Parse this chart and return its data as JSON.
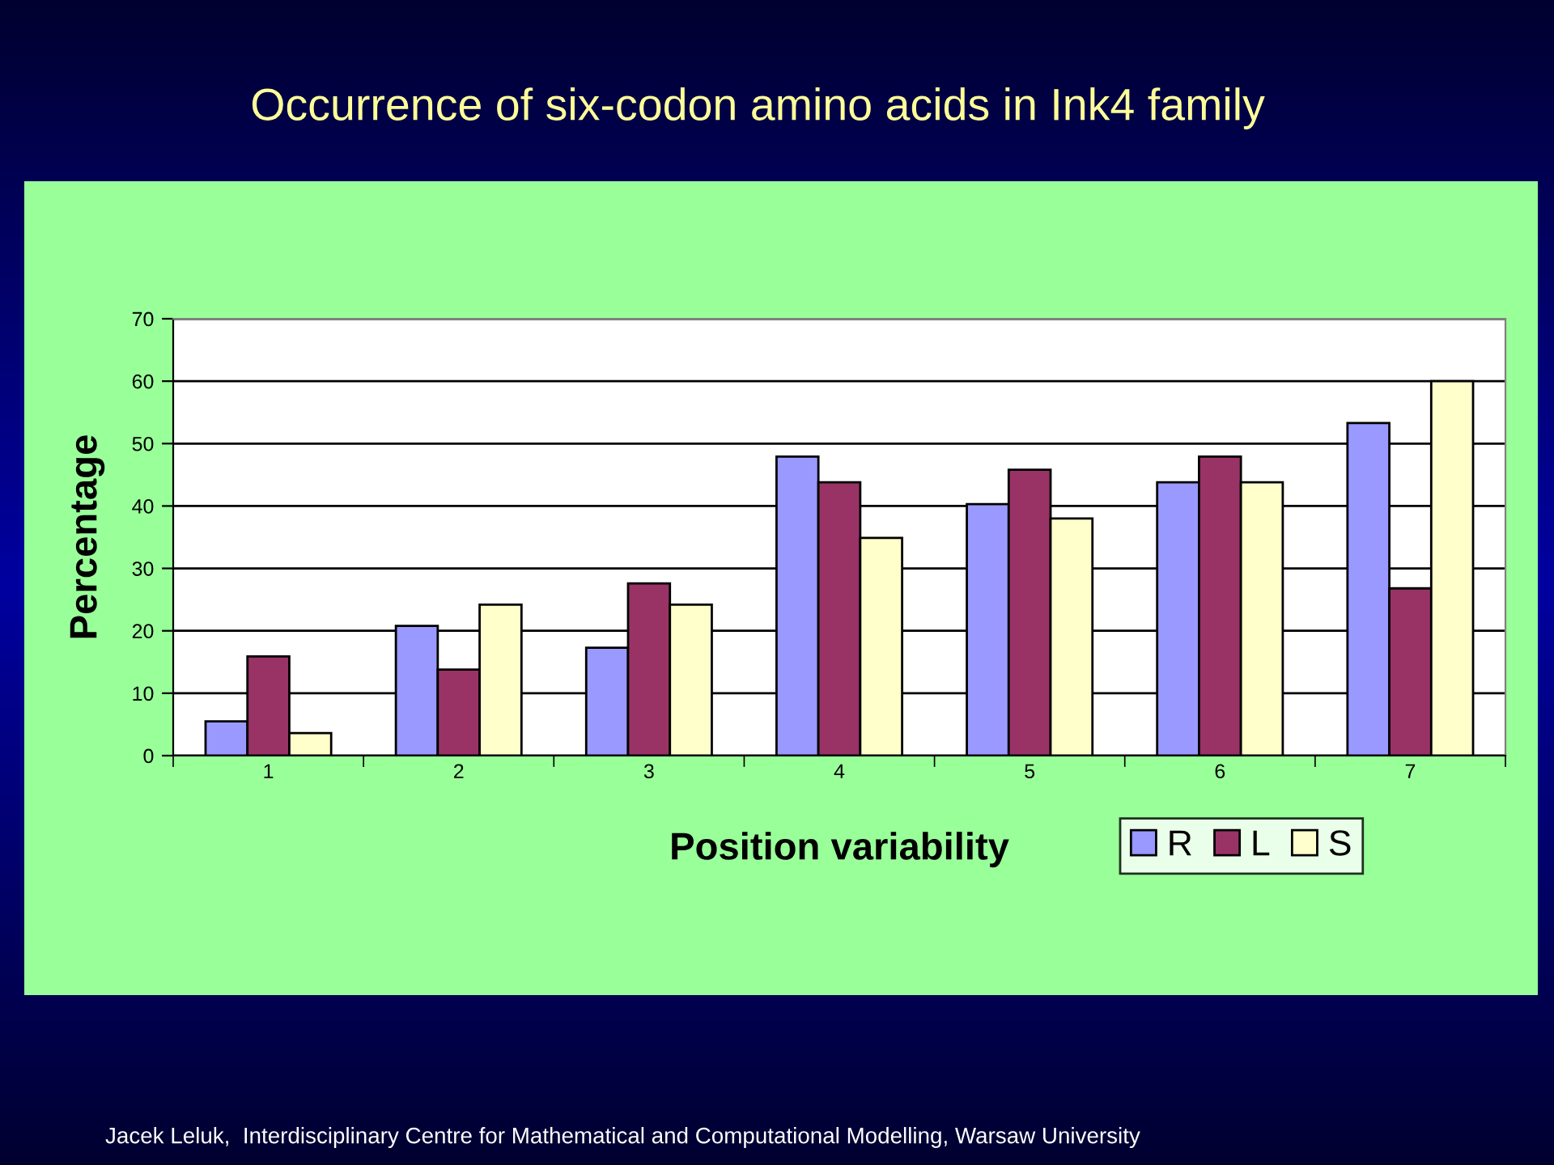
{
  "chart_data": {
    "type": "bar",
    "title": "Occurrence of six-codon amino acids in Ink4 family",
    "xlabel": "Position variability",
    "ylabel": "Percentage",
    "categories": [
      "1",
      "2",
      "3",
      "4",
      "5",
      "6",
      "7"
    ],
    "series": [
      {
        "name": "R",
        "color": "#9999ff",
        "values": [
          5.5,
          20.8,
          17.3,
          47.9,
          40.3,
          43.8,
          53.3
        ]
      },
      {
        "name": "L",
        "color": "#993366",
        "values": [
          15.9,
          13.8,
          27.6,
          43.8,
          45.8,
          47.9,
          26.8
        ]
      },
      {
        "name": "S",
        "color": "#ffffcc",
        "values": [
          3.6,
          24.2,
          24.2,
          34.9,
          38.0,
          43.8,
          60.0
        ]
      }
    ],
    "ylim": [
      0,
      70
    ],
    "yticks": [
      0,
      10,
      20,
      30,
      40,
      50,
      60,
      70
    ],
    "grid": "y",
    "legend": "bottom right",
    "annotations": [
      "Jacek Leluk,  Interdisciplinary Centre for Mathematical and Computational Modelling, Warsaw University"
    ]
  }
}
